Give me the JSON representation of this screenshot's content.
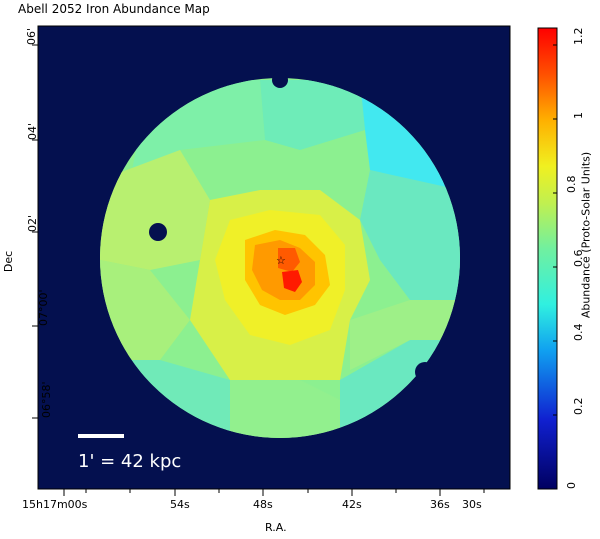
{
  "title": "Abell 2052 Iron Abundance Map",
  "axes": {
    "xlabel": "R.A.",
    "ylabel": "Dec",
    "x_ticks": [
      {
        "label": "15h17m00s"
      },
      {
        "label": "54s"
      },
      {
        "label": "48s"
      },
      {
        "label": "42s"
      },
      {
        "label": "36s"
      },
      {
        "label": "30s"
      }
    ],
    "y_ticks": [
      "06'",
      "04'",
      "02'",
      "07°00'",
      "06°58'"
    ]
  },
  "scalebar": {
    "label": "1' = 42 kpc"
  },
  "colorbar": {
    "title": "Abundance (Proto-Solar Units)",
    "ticks": [
      "0",
      "0.2",
      "0.4",
      "0.6",
      "0.8",
      "1",
      "1.2"
    ],
    "range": [
      0,
      1.25
    ]
  },
  "colors": {
    "background": "#04104f",
    "teal": "#5ee8c4",
    "cyan": "#42e8f0",
    "green": "#8cf090",
    "yellowgreen": "#c8f060",
    "yellow": "#f0f028",
    "orange": "#ffaa00",
    "red": "#ff2000"
  }
}
